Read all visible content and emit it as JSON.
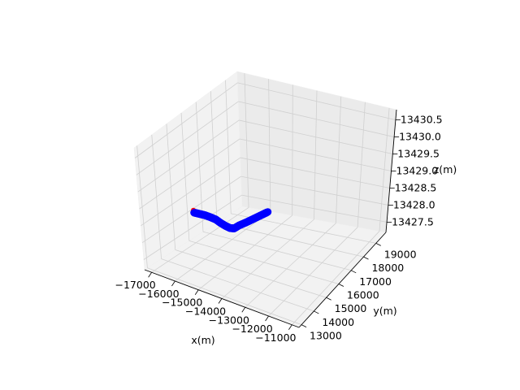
{
  "chart_data": {
    "type": "scatter",
    "projection": "3d",
    "title": "",
    "xlabel": "x(m)",
    "ylabel": "y(m)",
    "zlabel": "z(m)",
    "grid": true,
    "x_ticks": [
      "−17000",
      "−16000",
      "−15000",
      "−14000",
      "−13000",
      "−12000",
      "−11000"
    ],
    "y_ticks": [
      "13000",
      "14000",
      "15000",
      "16000",
      "17000",
      "18000",
      "19000"
    ],
    "z_ticks": [
      "13427.5",
      "13428.0",
      "13428.5",
      "13429.0",
      "13429.5",
      "13430.0",
      "13430.5"
    ],
    "series": [
      {
        "color": "#0000ff",
        "start_marker_color": "#ff0000",
        "points": [
          {
            "x": -15800,
            "y": 14200,
            "z": 13428.9
          },
          {
            "x": -15600,
            "y": 14250,
            "z": 13428.9
          },
          {
            "x": -15400,
            "y": 14300,
            "z": 13428.9
          },
          {
            "x": -15200,
            "y": 14350,
            "z": 13428.88
          },
          {
            "x": -15000,
            "y": 14400,
            "z": 13428.85
          },
          {
            "x": -14850,
            "y": 14450,
            "z": 13428.78
          },
          {
            "x": -14700,
            "y": 14550,
            "z": 13428.7
          },
          {
            "x": -14600,
            "y": 14700,
            "z": 13428.62
          },
          {
            "x": -14550,
            "y": 14900,
            "z": 13428.57
          },
          {
            "x": -14450,
            "y": 15100,
            "z": 13428.63
          },
          {
            "x": -14250,
            "y": 15300,
            "z": 13428.72
          },
          {
            "x": -14050,
            "y": 15500,
            "z": 13428.82
          },
          {
            "x": -13850,
            "y": 15700,
            "z": 13428.92
          },
          {
            "x": -13650,
            "y": 15900,
            "z": 13429.02
          }
        ]
      }
    ]
  }
}
